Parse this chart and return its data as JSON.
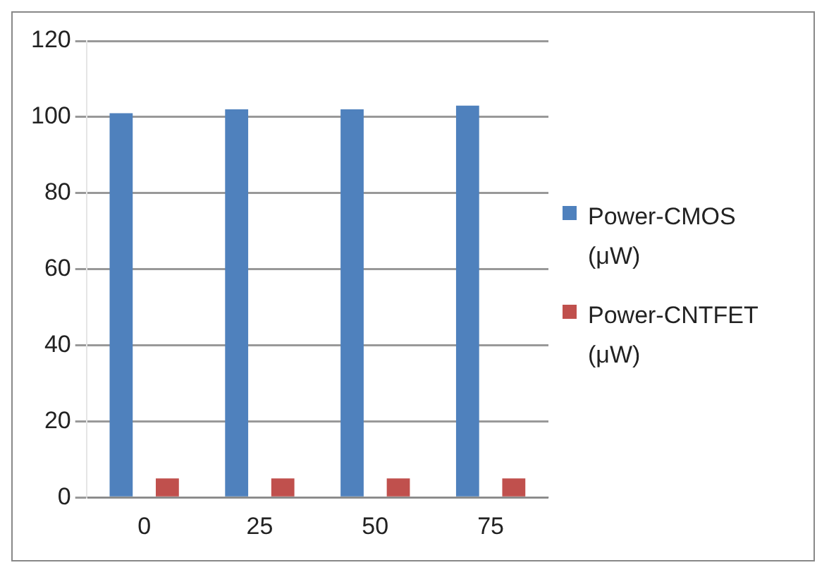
{
  "chart_data": {
    "type": "bar",
    "categories": [
      "0",
      "25",
      "50",
      "75"
    ],
    "series": [
      {
        "name": "Power-CMOS (μW)",
        "color": "#4f81bd",
        "values": [
          101,
          102,
          102,
          103
        ]
      },
      {
        "name": "Power-CNTFET  (μW)",
        "color": "#c0504d",
        "values": [
          5,
          5,
          5,
          5
        ]
      }
    ],
    "ylim": [
      0,
      120
    ],
    "yticks": [
      0,
      20,
      40,
      60,
      80,
      100,
      120
    ],
    "grid": "y",
    "legend": "right"
  }
}
